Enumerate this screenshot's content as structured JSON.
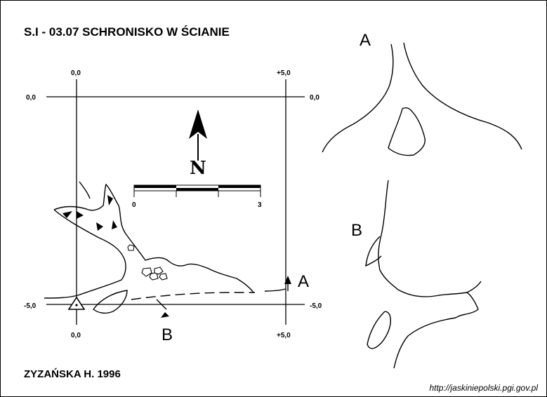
{
  "title": "S.I - 03.07  SCHRONISKO W ŚCIANIE",
  "grid": {
    "top_left": "0,0",
    "top_right": "+5,0",
    "left_top": "0,0",
    "right_top": "0,0",
    "left_bottom": "-5,0",
    "right_bottom": "-5,0",
    "bottom_left": "0,0",
    "bottom_right": "+5,0"
  },
  "north_label": "N",
  "scale": {
    "start": "0",
    "end": "3"
  },
  "section_labels": {
    "a_plan": "A",
    "b_plan": "B",
    "a_section": "A",
    "b_section": "B"
  },
  "author": "ZYZAŃSKA H. 1996",
  "url": "http://jaskiniepolski.pgi.gov.pl"
}
